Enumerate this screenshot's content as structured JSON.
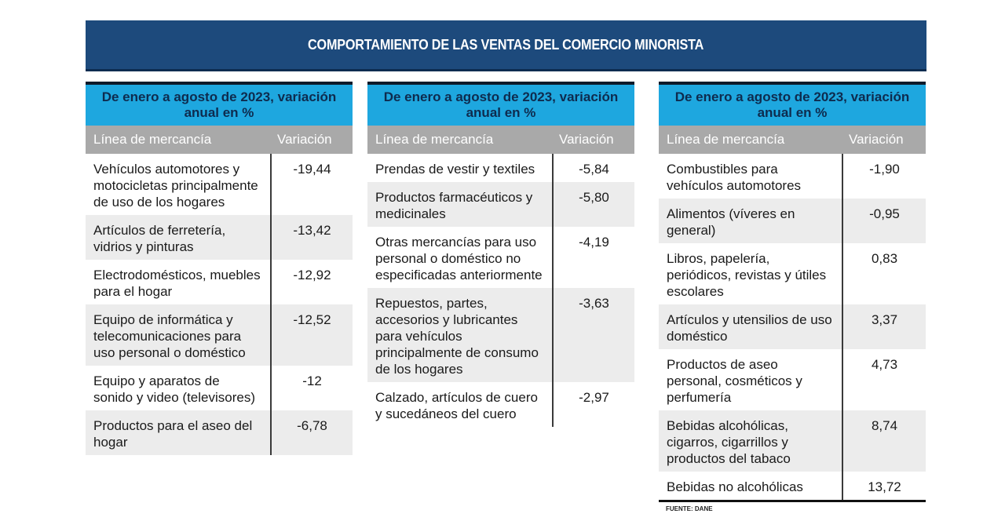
{
  "chart_data": {
    "type": "table",
    "title": "COMPORTAMIENTO DE LAS VENTAS DEL COMERCIO MINORISTA",
    "source": "FUENTE: DANE",
    "tables": [
      {
        "header": "De enero a agosto de 2023, variación anual en %",
        "columns": [
          "Línea de mercancía",
          "Variación"
        ],
        "rows": [
          {
            "label": "Vehículos automotores y motocicletas principalmente de uso de los hogares",
            "value": "-19,44"
          },
          {
            "label": "Artículos de ferretería, vidrios y pinturas",
            "value": "-13,42"
          },
          {
            "label": "Electrodomésticos, muebles para el hogar",
            "value": "-12,92"
          },
          {
            "label": "Equipo de informática y telecomunicaciones para uso personal o doméstico",
            "value": "-12,52"
          },
          {
            "label": "Equipo y aparatos de sonido y video (televisores)",
            "value": "-12"
          },
          {
            "label": "Productos para el aseo del hogar",
            "value": "-6,78"
          }
        ]
      },
      {
        "header": "De enero a agosto de 2023, variación anual en %",
        "columns": [
          "Línea de mercancía",
          "Variación"
        ],
        "rows": [
          {
            "label": "Prendas de vestir y textiles",
            "value": "-5,84"
          },
          {
            "label": "Productos farmacéuticos y medicinales",
            "value": "-5,80"
          },
          {
            "label": "Otras mercancías para uso personal o doméstico no especificadas anteriormente",
            "value": "-4,19"
          },
          {
            "label": "Repuestos, partes, accesorios y lubricantes para vehículos principalmente de consumo de los hogares",
            "value": "-3,63"
          },
          {
            "label": "Calzado, artículos de cuero y sucedáneos del cuero",
            "value": "-2,97"
          }
        ]
      },
      {
        "header": "De enero a agosto de 2023, variación anual en %",
        "columns": [
          "Línea de mercancía",
          "Variación"
        ],
        "rows": [
          {
            "label": "Combustibles para vehículos automotores",
            "value": "-1,90"
          },
          {
            "label": "Alimentos (víveres en general)",
            "value": "-0,95"
          },
          {
            "label": "Libros, papelería, periódicos, revistas y útiles escolares",
            "value": "0,83"
          },
          {
            "label": "Artículos y utensilios de uso doméstico",
            "value": "3,37"
          },
          {
            "label": "Productos de aseo personal, cosméticos y perfumería",
            "value": "4,73"
          },
          {
            "label": "Bebidas alcohólicas, cigarros, cigarrillos y productos del tabaco",
            "value": "8,74"
          },
          {
            "label": "Bebidas no alcohólicas",
            "value": "13,72"
          }
        ]
      }
    ]
  }
}
